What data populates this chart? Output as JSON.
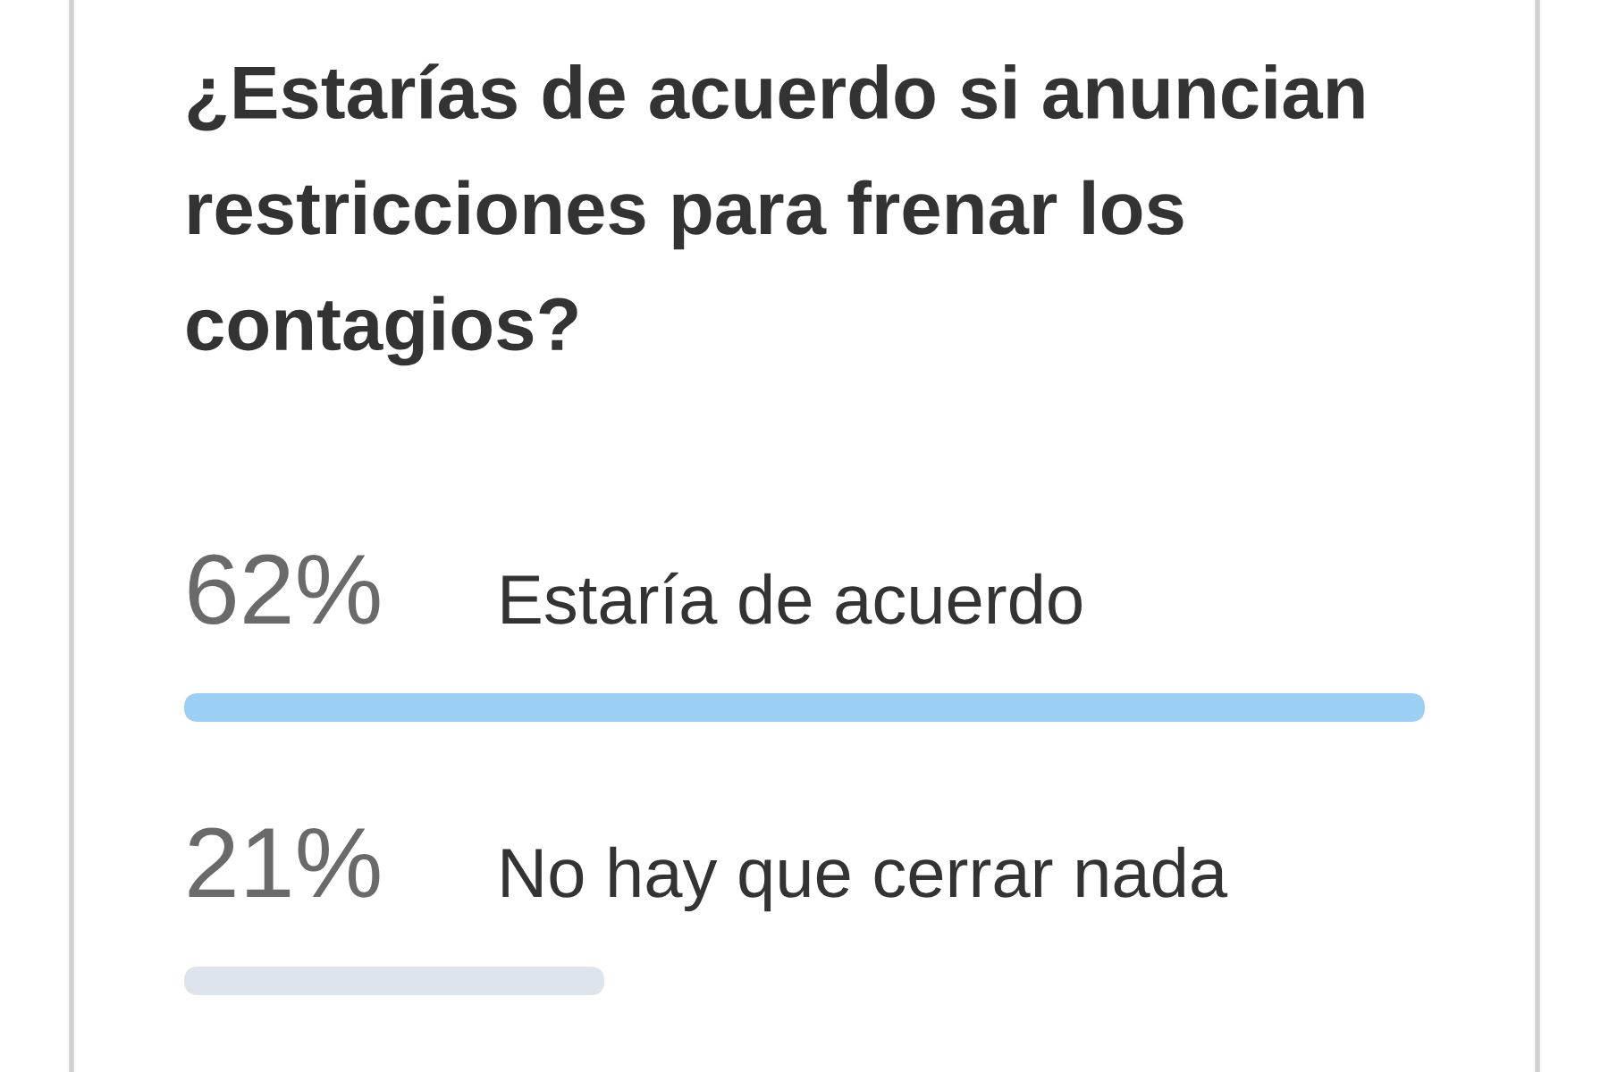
{
  "chart_data": {
    "type": "bar",
    "orientation": "horizontal",
    "title": "¿Estarías de acuerdo si anuncian restricciones para frenar los contagios?",
    "categories": [
      "Estaría de acuerdo",
      "No hay que cerrar nada"
    ],
    "values": [
      62,
      21
    ],
    "colors": [
      "#9bd0f4",
      "#dde4eb"
    ],
    "value_labels": [
      "62%",
      "21%"
    ]
  }
}
